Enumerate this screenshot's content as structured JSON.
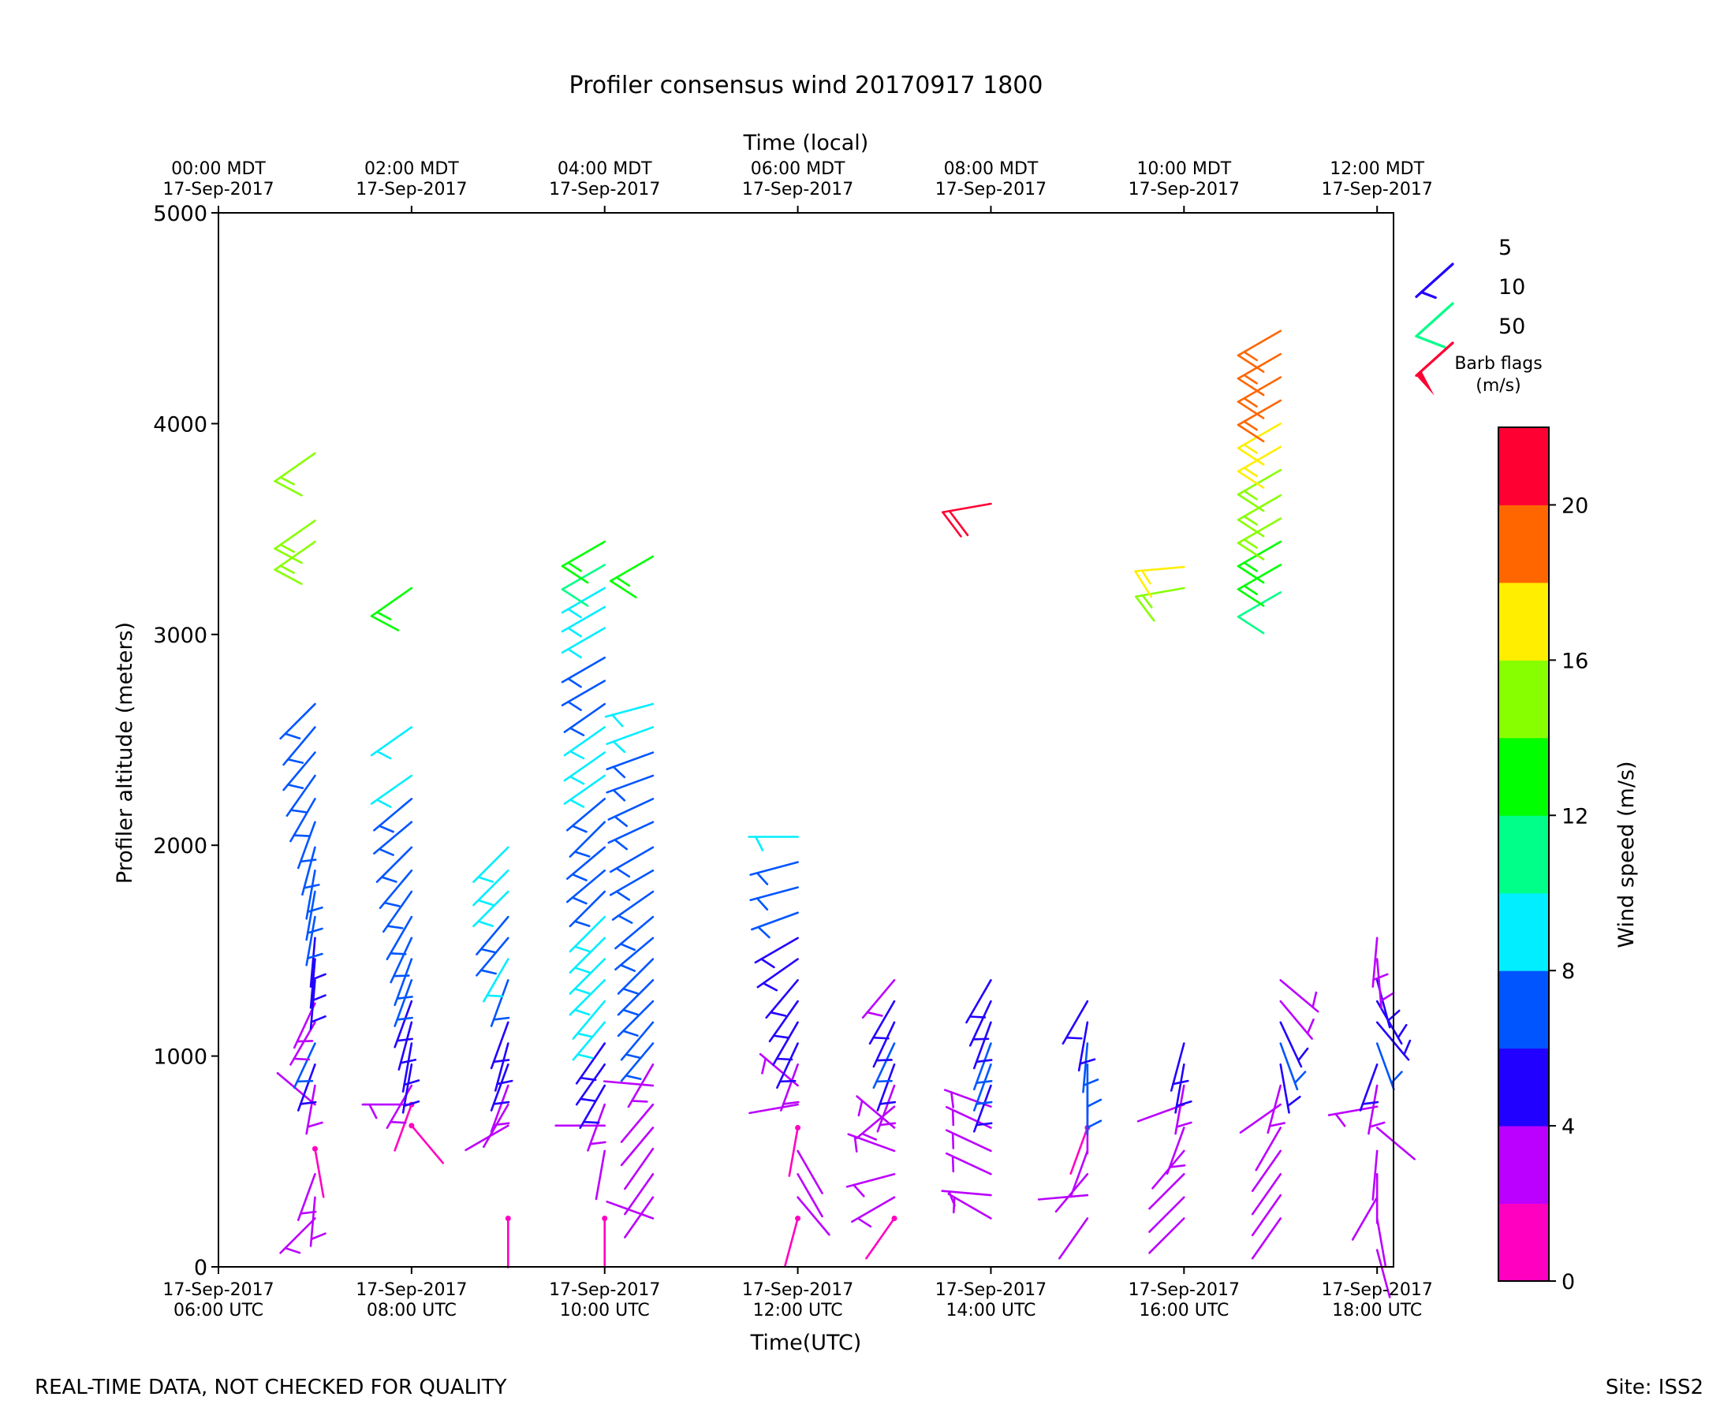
{
  "chart_data": {
    "type": "wind-barb",
    "title": "Profiler consensus wind 20170917 1800",
    "top_axis_label": "Time (local)",
    "xlabel": "Time(UTC)",
    "ylabel": "Profiler altitude (meters)",
    "ylim": [
      0,
      5000
    ],
    "y_ticks": [
      "0",
      "1000",
      "2000",
      "3000",
      "4000",
      "5000"
    ],
    "x_range_hours_utc": [
      6.0,
      18.17
    ],
    "x_ticks": [
      {
        "utc_line1": "17-Sep-2017",
        "utc_line2": "06:00 UTC",
        "local_line1": "00:00 MDT",
        "local_line2": "17-Sep-2017"
      },
      {
        "utc_line1": "17-Sep-2017",
        "utc_line2": "08:00 UTC",
        "local_line1": "02:00 MDT",
        "local_line2": "17-Sep-2017"
      },
      {
        "utc_line1": "17-Sep-2017",
        "utc_line2": "10:00 UTC",
        "local_line1": "04:00 MDT",
        "local_line2": "17-Sep-2017"
      },
      {
        "utc_line1": "17-Sep-2017",
        "utc_line2": "12:00 UTC",
        "local_line1": "06:00 MDT",
        "local_line2": "17-Sep-2017"
      },
      {
        "utc_line1": "17-Sep-2017",
        "utc_line2": "14:00 UTC",
        "local_line1": "08:00 MDT",
        "local_line2": "17-Sep-2017"
      },
      {
        "utc_line1": "17-Sep-2017",
        "utc_line2": "16:00 UTC",
        "local_line1": "10:00 MDT",
        "local_line2": "17-Sep-2017"
      },
      {
        "utc_line1": "17-Sep-2017",
        "utc_line2": "18:00 UTC",
        "local_line1": "12:00 MDT",
        "local_line2": "17-Sep-2017"
      }
    ],
    "colorbar": {
      "label": "Wind speed (m/s)",
      "bins": [
        0,
        2,
        4,
        6,
        8,
        10,
        12,
        14,
        16,
        18,
        20,
        22
      ],
      "colors": [
        "#ff00c0",
        "#bb00ff",
        "#2200ff",
        "#0055ff",
        "#00eeff",
        "#00ff88",
        "#00ff00",
        "#88ff00",
        "#ffee00",
        "#ff6600",
        "#ff0033"
      ],
      "tick_labels": [
        "0",
        "4",
        "8",
        "12",
        "16",
        "20"
      ]
    },
    "legend": {
      "title_line1": "Barb flags",
      "title_line2": "(m/s)",
      "entries": [
        {
          "label": "5",
          "color": "#2200ff"
        },
        {
          "label": "10",
          "color": "#00ff88"
        },
        {
          "label": "50",
          "color": "#ff0033"
        }
      ]
    },
    "profiles": [
      {
        "t": 7.0,
        "winds": [
          [
            230,
            3,
            225
          ],
          [
            330,
            3,
            185
          ],
          [
            440,
            3,
            200
          ],
          [
            560,
            1.5,
            170
          ],
          [
            770,
            2,
            310
          ],
          [
            860,
            3,
            190
          ],
          [
            960,
            5,
            200
          ],
          [
            1060,
            6,
            205
          ],
          [
            1160,
            3,
            210
          ],
          [
            1250,
            3,
            205
          ],
          [
            1360,
            5,
            185
          ],
          [
            1460,
            5,
            185
          ],
          [
            1560,
            5,
            185
          ],
          [
            1660,
            7,
            190
          ],
          [
            1780,
            7,
            190
          ],
          [
            1880,
            7,
            190
          ],
          [
            1990,
            7,
            195
          ],
          [
            2110,
            7,
            200
          ],
          [
            2220,
            7,
            210
          ],
          [
            2330,
            7,
            215
          ],
          [
            2440,
            7,
            220
          ],
          [
            2560,
            7,
            220
          ],
          [
            2670,
            7,
            225
          ],
          [
            3440,
            15,
            235
          ],
          [
            3540,
            15,
            235
          ],
          [
            3860,
            15,
            235
          ]
        ]
      },
      {
        "t": 8.0,
        "winds": [
          [
            670,
            1.5,
            140
          ],
          [
            770,
            3,
            270
          ],
          [
            770,
            1.5,
            200
          ],
          [
            860,
            3,
            210
          ],
          [
            960,
            5,
            190
          ],
          [
            1060,
            5,
            190
          ],
          [
            1160,
            5,
            195
          ],
          [
            1260,
            5,
            200
          ],
          [
            1360,
            7,
            200
          ],
          [
            1460,
            7,
            200
          ],
          [
            1560,
            7,
            205
          ],
          [
            1660,
            7,
            210
          ],
          [
            1780,
            7,
            215
          ],
          [
            1880,
            7,
            220
          ],
          [
            1990,
            7,
            225
          ],
          [
            2110,
            7,
            230
          ],
          [
            2220,
            7,
            230
          ],
          [
            2330,
            9,
            235
          ],
          [
            2560,
            9,
            235
          ],
          [
            3220,
            13,
            235
          ]
        ]
      },
      {
        "t": 9.0,
        "winds": [
          [
            230,
            1.5,
            180
          ],
          [
            670,
            2,
            240
          ],
          [
            770,
            2,
            210
          ],
          [
            860,
            3,
            200
          ],
          [
            960,
            5,
            200
          ],
          [
            1060,
            5,
            195
          ],
          [
            1160,
            5,
            200
          ],
          [
            1360,
            7,
            200
          ],
          [
            1460,
            9,
            210
          ],
          [
            1560,
            7,
            220
          ],
          [
            1660,
            7,
            220
          ],
          [
            1780,
            9,
            225
          ],
          [
            1880,
            9,
            225
          ],
          [
            1990,
            9,
            225
          ]
        ]
      },
      {
        "t": 10.0,
        "winds": [
          [
            230,
            1.5,
            180
          ],
          [
            550,
            2,
            190
          ],
          [
            670,
            2,
            270
          ],
          [
            770,
            3,
            200
          ],
          [
            860,
            5,
            210
          ],
          [
            960,
            5,
            215
          ],
          [
            1060,
            5,
            215
          ],
          [
            1160,
            9,
            220
          ],
          [
            1260,
            9,
            220
          ],
          [
            1360,
            9,
            225
          ],
          [
            1460,
            9,
            225
          ],
          [
            1560,
            9,
            225
          ],
          [
            1660,
            9,
            225
          ],
          [
            1780,
            7,
            225
          ],
          [
            1880,
            7,
            230
          ],
          [
            1990,
            7,
            230
          ],
          [
            2110,
            7,
            225
          ],
          [
            2220,
            7,
            230
          ],
          [
            2330,
            9,
            235
          ],
          [
            2440,
            9,
            235
          ],
          [
            2560,
            9,
            235
          ],
          [
            2670,
            7,
            235
          ],
          [
            2780,
            7,
            240
          ],
          [
            2890,
            7,
            240
          ],
          [
            3030,
            9,
            240
          ],
          [
            3130,
            9,
            240
          ],
          [
            3220,
            9,
            240
          ],
          [
            3330,
            11,
            240
          ],
          [
            3440,
            13,
            240
          ]
        ]
      },
      {
        "t": 10.5,
        "winds": [
          [
            230,
            2,
            290
          ],
          [
            330,
            2,
            215
          ],
          [
            440,
            2,
            215
          ],
          [
            560,
            2,
            215
          ],
          [
            660,
            2,
            220
          ],
          [
            770,
            2,
            220
          ],
          [
            860,
            2,
            275
          ],
          [
            960,
            3,
            210
          ],
          [
            1060,
            7,
            220
          ],
          [
            1160,
            7,
            220
          ],
          [
            1260,
            7,
            225
          ],
          [
            1360,
            7,
            225
          ],
          [
            1460,
            7,
            225
          ],
          [
            1560,
            7,
            230
          ],
          [
            1660,
            7,
            230
          ],
          [
            1780,
            7,
            235
          ],
          [
            1880,
            7,
            240
          ],
          [
            1990,
            7,
            240
          ],
          [
            2110,
            7,
            245
          ],
          [
            2220,
            7,
            245
          ],
          [
            2330,
            7,
            250
          ],
          [
            2440,
            7,
            250
          ],
          [
            2560,
            9,
            250
          ],
          [
            2670,
            9,
            255
          ],
          [
            3370,
            13,
            240
          ]
        ]
      },
      {
        "t": 12.0,
        "winds": [
          [
            230,
            1.5,
            195
          ],
          [
            330,
            2,
            140
          ],
          [
            440,
            2,
            150
          ],
          [
            550,
            2,
            150
          ],
          [
            660,
            1.5,
            190
          ],
          [
            770,
            2,
            260
          ],
          [
            860,
            3,
            310
          ],
          [
            960,
            3,
            200
          ],
          [
            1060,
            5,
            205
          ],
          [
            1160,
            5,
            210
          ],
          [
            1260,
            5,
            215
          ],
          [
            1360,
            5,
            220
          ],
          [
            1460,
            5,
            235
          ],
          [
            1560,
            5,
            240
          ],
          [
            1680,
            7,
            250
          ],
          [
            1800,
            7,
            255
          ],
          [
            1920,
            7,
            255
          ],
          [
            2040,
            9,
            270
          ]
        ]
      },
      {
        "t": 13.0,
        "winds": [
          [
            230,
            1.5,
            215
          ],
          [
            330,
            3,
            240
          ],
          [
            440,
            3,
            255
          ],
          [
            550,
            3,
            290
          ],
          [
            660,
            3,
            310
          ],
          [
            760,
            3,
            230
          ],
          [
            860,
            3,
            200
          ],
          [
            960,
            5,
            200
          ],
          [
            1060,
            7,
            205
          ],
          [
            1160,
            5,
            205
          ],
          [
            1260,
            5,
            210
          ],
          [
            1360,
            3,
            220
          ]
        ]
      },
      {
        "t": 14.0,
        "winds": [
          [
            230,
            3,
            300
          ],
          [
            340,
            3,
            275
          ],
          [
            440,
            3,
            295
          ],
          [
            550,
            3,
            295
          ],
          [
            660,
            3,
            295
          ],
          [
            760,
            3,
            290
          ],
          [
            860,
            5,
            200
          ],
          [
            960,
            7,
            200
          ],
          [
            1060,
            7,
            200
          ],
          [
            1160,
            5,
            200
          ],
          [
            1260,
            5,
            205
          ],
          [
            1360,
            5,
            210
          ],
          [
            3620,
            20,
            260
          ]
        ]
      },
      {
        "t": 15.0,
        "winds": [
          [
            230,
            2,
            215
          ],
          [
            340,
            2,
            265
          ],
          [
            440,
            2,
            220
          ],
          [
            550,
            2,
            200
          ],
          [
            660,
            1.5,
            200
          ],
          [
            770,
            2,
            180
          ],
          [
            860,
            7,
            180
          ],
          [
            960,
            7,
            180
          ],
          [
            1060,
            7,
            185
          ],
          [
            1160,
            5,
            190
          ],
          [
            1260,
            5,
            210
          ]
        ]
      },
      {
        "t": 16.0,
        "winds": [
          [
            230,
            2,
            225
          ],
          [
            330,
            2,
            225
          ],
          [
            440,
            2,
            225
          ],
          [
            550,
            2,
            220
          ],
          [
            660,
            3,
            200
          ],
          [
            770,
            2,
            250
          ],
          [
            860,
            3,
            190
          ],
          [
            960,
            5,
            190
          ],
          [
            1060,
            5,
            195
          ],
          [
            3220,
            15,
            260
          ],
          [
            3320,
            17,
            265
          ]
        ]
      },
      {
        "t": 17.0,
        "winds": [
          [
            230,
            2,
            215
          ],
          [
            340,
            2,
            215
          ],
          [
            440,
            2,
            215
          ],
          [
            550,
            2,
            215
          ],
          [
            660,
            2,
            210
          ],
          [
            770,
            2,
            235
          ],
          [
            860,
            3,
            195
          ],
          [
            960,
            5,
            170
          ],
          [
            1060,
            7,
            160
          ],
          [
            1160,
            5,
            155
          ],
          [
            1260,
            3,
            140
          ],
          [
            1360,
            3,
            130
          ],
          [
            3200,
            11,
            240
          ],
          [
            3330,
            13,
            240
          ],
          [
            3440,
            13,
            240
          ],
          [
            3550,
            15,
            240
          ],
          [
            3660,
            15,
            240
          ],
          [
            3780,
            15,
            240
          ],
          [
            3890,
            17,
            240
          ],
          [
            4000,
            17,
            240
          ],
          [
            4110,
            19,
            240
          ],
          [
            4220,
            19,
            240
          ],
          [
            4330,
            19,
            240
          ],
          [
            4440,
            19,
            240
          ]
        ]
      },
      {
        "t": 18.0,
        "winds": [
          [
            80,
            2,
            165
          ],
          [
            230,
            2,
            170
          ],
          [
            330,
            2,
            210
          ],
          [
            440,
            2,
            180
          ],
          [
            550,
            2,
            185
          ],
          [
            660,
            2,
            130
          ],
          [
            760,
            3,
            260
          ],
          [
            860,
            3,
            190
          ],
          [
            960,
            5,
            200
          ],
          [
            1060,
            7,
            160
          ],
          [
            1160,
            5,
            140
          ],
          [
            1260,
            5,
            150
          ],
          [
            1360,
            5,
            165
          ],
          [
            1460,
            3,
            175
          ],
          [
            1560,
            3,
            185
          ]
        ]
      }
    ]
  },
  "footer": {
    "left": "REAL-TIME DATA, NOT CHECKED FOR QUALITY",
    "right": "Site: ISS2"
  }
}
